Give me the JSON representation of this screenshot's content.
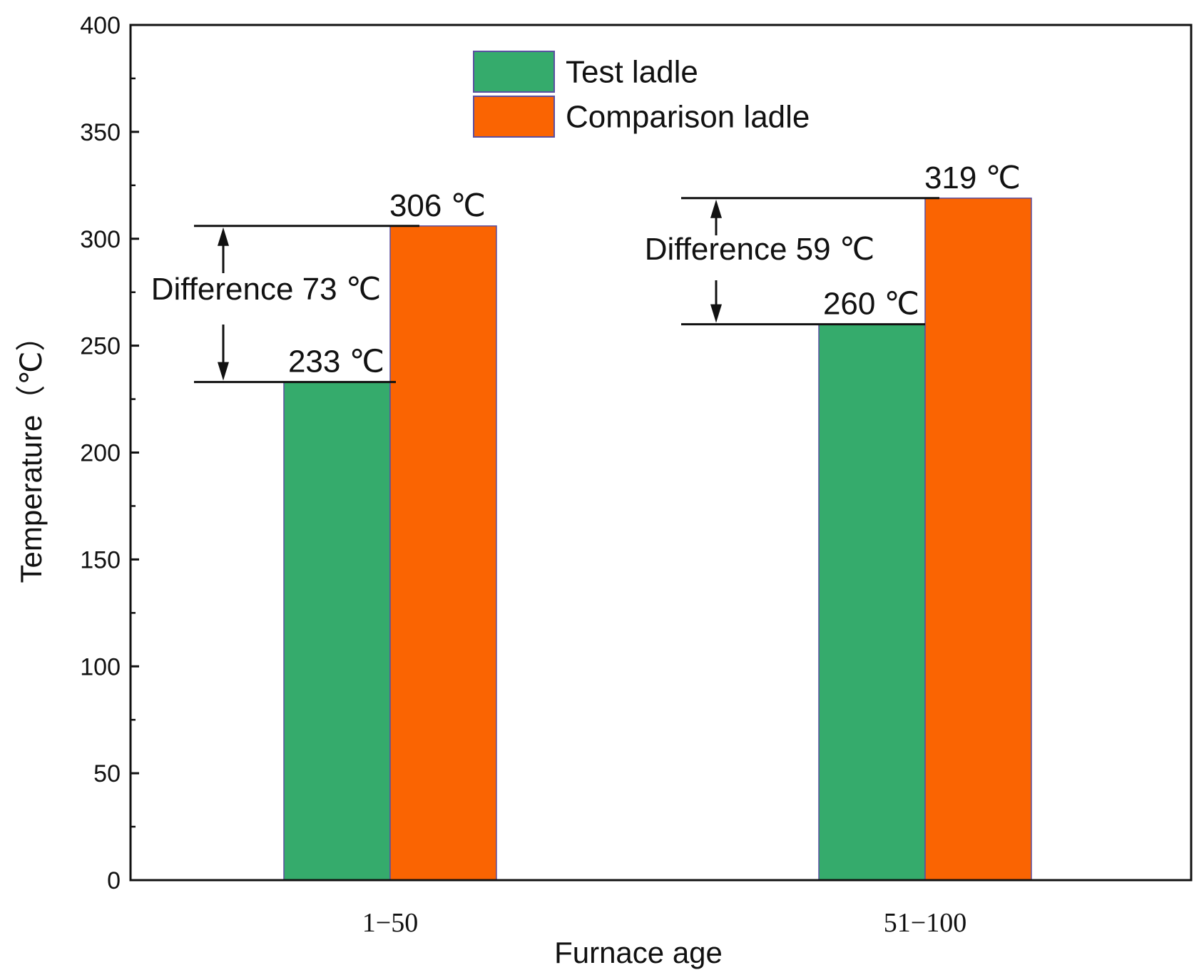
{
  "chart_data": {
    "type": "bar",
    "title": "",
    "xlabel": "Furnace age",
    "ylabel": "Temperature（℃）",
    "ylim": [
      0,
      400
    ],
    "yticks": [
      0,
      50,
      100,
      150,
      200,
      250,
      300,
      350,
      400
    ],
    "categories": [
      "1−50",
      "51−100"
    ],
    "series": [
      {
        "name": "Test ladle",
        "color": "#35ab6c",
        "values": [
          233,
          260
        ],
        "labels": [
          "233 ℃",
          "260 ℃"
        ]
      },
      {
        "name": "Comparison ladle",
        "color": "#fa6402",
        "values": [
          306,
          319
        ],
        "labels": [
          "306 ℃",
          "319 ℃"
        ]
      }
    ],
    "annotations": [
      {
        "category": "1−50",
        "from": 233,
        "to": 306,
        "text": "Difference 73 ℃"
      },
      {
        "category": "51−100",
        "from": 260,
        "to": 319,
        "text": "Difference 59 ℃"
      }
    ],
    "legend": {
      "position": "top-center"
    },
    "grid": false
  }
}
